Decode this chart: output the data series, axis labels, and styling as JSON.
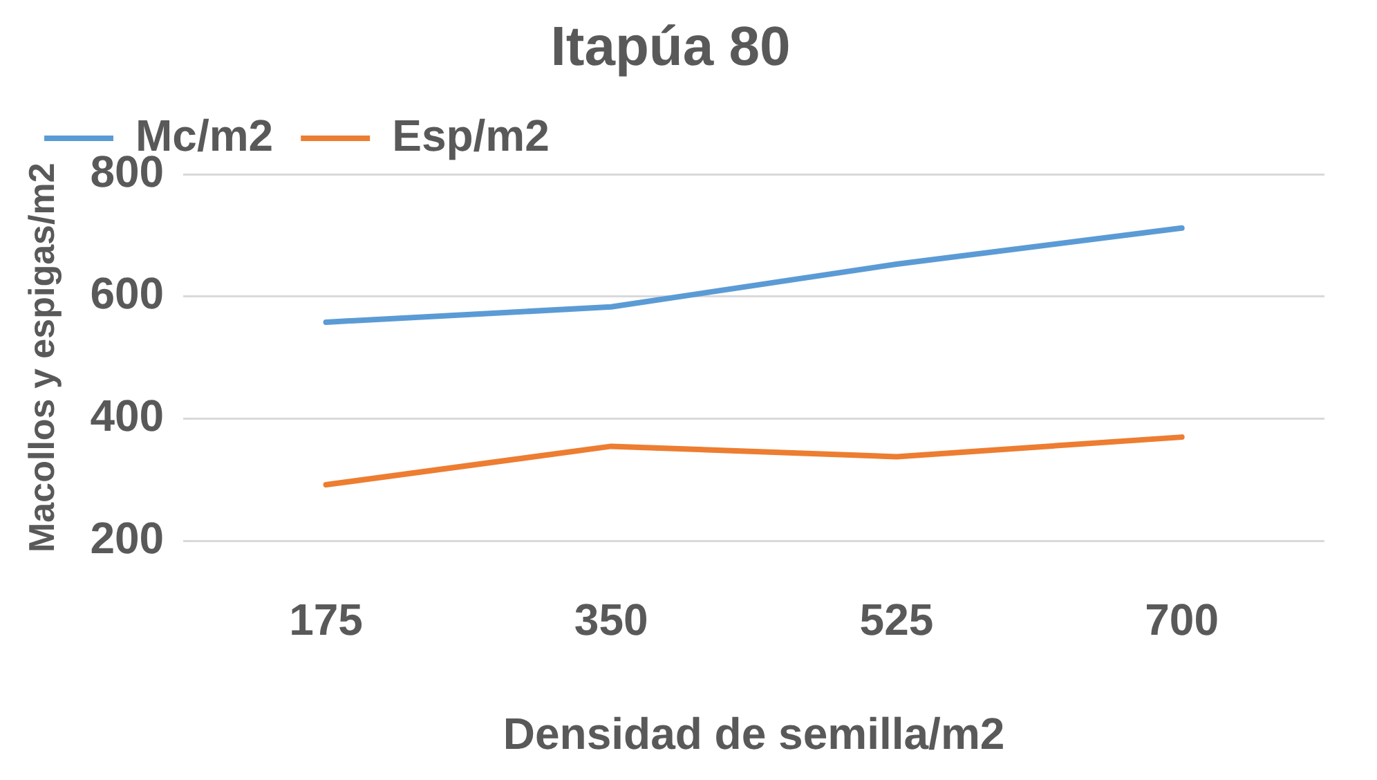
{
  "chart_data": {
    "type": "line",
    "title": "Itapúa 80",
    "xlabel": "Densidad de semilla/m2",
    "ylabel": "Macollos y espigas/m2",
    "categories": [
      "175",
      "350",
      "525",
      "700"
    ],
    "series": [
      {
        "name": "Mc/m2",
        "color": "#5b9bd5",
        "values": [
          558,
          583,
          653,
          712
        ]
      },
      {
        "name": "Esp/m2",
        "color": "#ed7d31",
        "values": [
          292,
          355,
          338,
          370
        ]
      }
    ],
    "ylim": [
      200,
      800
    ],
    "yticks": [
      200,
      400,
      600,
      800
    ],
    "grid": "y",
    "legend": "top left",
    "marker": "none",
    "line_style": "solid"
  }
}
